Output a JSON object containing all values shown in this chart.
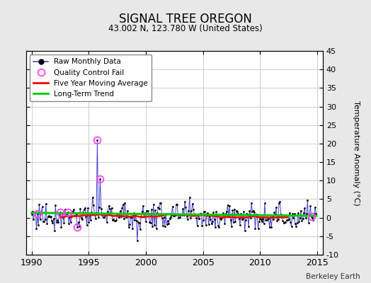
{
  "title": "SIGNAL TREE OREGON",
  "subtitle": "43.002 N, 123.780 W (United States)",
  "ylabel_right": "Temperature Anomaly (°C)",
  "credit": "Berkeley Earth",
  "xlim": [
    1989.5,
    2015.5
  ],
  "ylim": [
    -10,
    45
  ],
  "yticks_right": [
    -10,
    -5,
    0,
    5,
    10,
    15,
    20,
    25,
    30,
    35,
    40,
    45
  ],
  "xticks": [
    1990,
    1995,
    2000,
    2005,
    2010,
    2015
  ],
  "bg_color": "#e8e8e8",
  "plot_bg_color": "#ffffff",
  "grid_color": "#cccccc",
  "raw_line_color": "#4444cc",
  "raw_dot_color": "#000000",
  "qc_fail_color": "#ff44ff",
  "moving_avg_color": "#ff0000",
  "trend_color": "#00cc00",
  "legend_loc": "upper left",
  "spike1_year": 1995.75,
  "spike1_val": 21.0,
  "spike2_year": 1996.0,
  "spike2_val": 10.5,
  "qc_years": [
    1990.5,
    1992.5,
    1993.2,
    1994.0,
    1995.75,
    1996.0,
    2014.5
  ],
  "neg_spike_year": 1999.25,
  "neg_spike_val": -6.2
}
